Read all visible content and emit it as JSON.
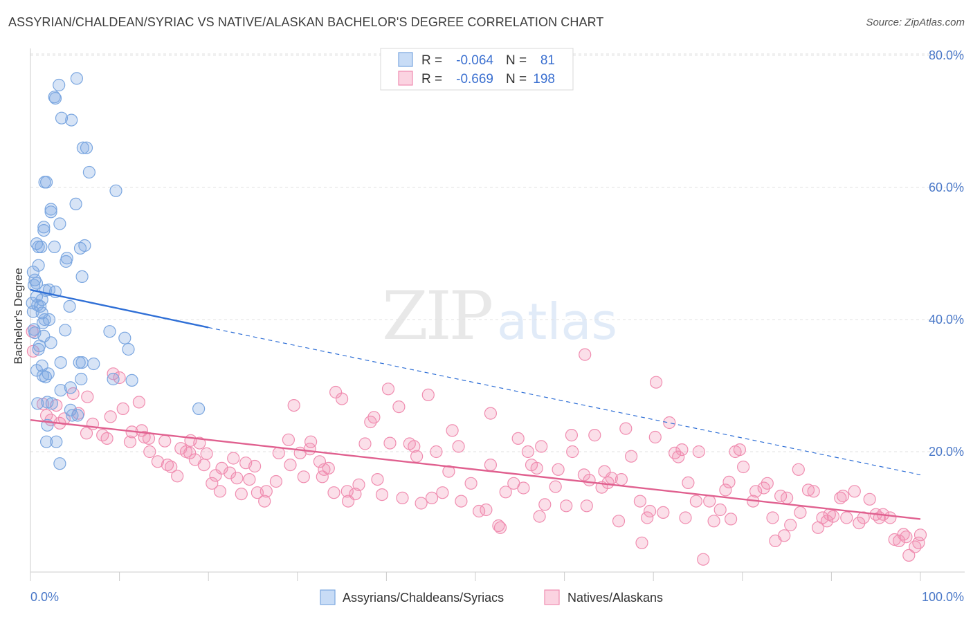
{
  "title": "ASSYRIAN/CHALDEAN/SYRIAC VS NATIVE/ALASKAN BACHELOR'S DEGREE CORRELATION CHART",
  "source": "Source: ZipAtlas.com",
  "watermark": {
    "zip": "ZIP",
    "atlas": "atlas"
  },
  "colors": {
    "blue": "#7aa6e0",
    "blue_line": "#2f6fd6",
    "pink": "#f08db0",
    "pink_line": "#e0608f",
    "tick_text": "#4a78c8"
  },
  "legend": {
    "r_label": "R =",
    "n_label": "N =",
    "series": [
      {
        "r": "-0.064",
        "n": "81"
      },
      {
        "r": "-0.669",
        "n": "198"
      }
    ]
  },
  "chart_data": {
    "type": "scatter",
    "title": "ASSYRIAN/CHALDEAN/SYRIAC VS NATIVE/ALASKAN BACHELOR'S DEGREE CORRELATION CHART",
    "xlabel": "",
    "ylabel": "Bachelor's Degree",
    "xlim": [
      0,
      100
    ],
    "ylim": [
      0,
      82
    ],
    "x_tick_labels": [
      "0.0%",
      "100.0%"
    ],
    "y_ticks": [
      20,
      40,
      60,
      80
    ],
    "y_tick_labels": [
      "20.0%",
      "40.0%",
      "60.0%",
      "80.0%"
    ],
    "legend_position": "top-center",
    "series": [
      {
        "name": "Assyrians/Chaldeans/Syriacs",
        "color": "blue",
        "trend": {
          "x1": 0,
          "y1": 44.5,
          "x2": 20,
          "y2": 38.8,
          "dashed_to_x": 100,
          "dashed_to_y": 16.5
        },
        "points": [
          [
            5.2,
            76.5
          ],
          [
            3.2,
            75.5
          ],
          [
            2.8,
            73.5
          ],
          [
            2.7,
            73.7
          ],
          [
            3.5,
            70.5
          ],
          [
            4.6,
            70.2
          ],
          [
            6.3,
            66
          ],
          [
            5.9,
            66
          ],
          [
            6.6,
            62.3
          ],
          [
            1.6,
            60.8
          ],
          [
            1.8,
            60.8
          ],
          [
            9.6,
            59.5
          ],
          [
            5.1,
            57.5
          ],
          [
            2.3,
            56.3
          ],
          [
            2.3,
            56.7
          ],
          [
            3.3,
            54.5
          ],
          [
            1.5,
            53.5
          ],
          [
            1.5,
            54
          ],
          [
            0.7,
            51.5
          ],
          [
            0.9,
            51
          ],
          [
            2.7,
            51
          ],
          [
            6.1,
            51.2
          ],
          [
            5.6,
            50.8
          ],
          [
            1.2,
            51
          ],
          [
            4.0,
            48.8
          ],
          [
            4.1,
            49.3
          ],
          [
            0.9,
            48.2
          ],
          [
            0.3,
            47.2
          ],
          [
            0.5,
            46.0
          ],
          [
            5.8,
            46.5
          ],
          [
            0.7,
            45.5
          ],
          [
            0.4,
            45.2
          ],
          [
            2.1,
            44.5
          ],
          [
            1.7,
            44.4
          ],
          [
            2.8,
            44.2
          ],
          [
            0.7,
            43.5
          ],
          [
            0.2,
            42.5
          ],
          [
            1.3,
            43.0
          ],
          [
            0.8,
            42.2
          ],
          [
            1.1,
            42.0
          ],
          [
            1.3,
            41.0
          ],
          [
            0.3,
            41.2
          ],
          [
            4.4,
            42.0
          ],
          [
            1.6,
            40.0
          ],
          [
            2.1,
            40.0
          ],
          [
            1.4,
            39.5
          ],
          [
            0.4,
            38.5
          ],
          [
            3.9,
            38.4
          ],
          [
            0.5,
            38.0
          ],
          [
            8.9,
            38.2
          ],
          [
            1.5,
            37.5
          ],
          [
            10.6,
            37.2
          ],
          [
            2.3,
            36.5
          ],
          [
            1.0,
            36.0
          ],
          [
            11.0,
            35.5
          ],
          [
            0.9,
            35.5
          ],
          [
            3.4,
            33.5
          ],
          [
            5.5,
            33.5
          ],
          [
            7.1,
            33.3
          ],
          [
            5.8,
            33.5
          ],
          [
            1.3,
            33.0
          ],
          [
            0.7,
            32.3
          ],
          [
            2.0,
            31.8
          ],
          [
            1.4,
            31.5
          ],
          [
            1.7,
            31.3
          ],
          [
            9.3,
            31.0
          ],
          [
            11.4,
            30.8
          ],
          [
            5.7,
            31.0
          ],
          [
            4.5,
            29.7
          ],
          [
            3.4,
            29.3
          ],
          [
            0.8,
            27.3
          ],
          [
            2.4,
            27.3
          ],
          [
            1.9,
            27.5
          ],
          [
            18.9,
            26.5
          ],
          [
            4.5,
            26.3
          ],
          [
            5.3,
            25.5
          ],
          [
            4.7,
            25.5
          ],
          [
            1.9,
            24.0
          ],
          [
            1.8,
            21.5
          ],
          [
            2.9,
            21.5
          ],
          [
            3.3,
            18.2
          ]
        ]
      },
      {
        "name": "Natives/Alaskans",
        "color": "pink",
        "trend": {
          "x1": 0,
          "y1": 24.8,
          "x2": 100,
          "y2": 9.8
        },
        "points": [
          [
            0.2,
            38.2
          ],
          [
            0.3,
            35.2
          ],
          [
            1.4,
            27.2
          ],
          [
            4.8,
            28.8
          ],
          [
            6.4,
            28.3
          ],
          [
            2.9,
            27.0
          ],
          [
            9.3,
            31.8
          ],
          [
            10.0,
            31.2
          ],
          [
            12.2,
            27.5
          ],
          [
            1.8,
            25.5
          ],
          [
            2.3,
            24.8
          ],
          [
            3.3,
            24.3
          ],
          [
            3.8,
            25.0
          ],
          [
            5.4,
            25.8
          ],
          [
            6.3,
            22.8
          ],
          [
            7.0,
            24.2
          ],
          [
            8.6,
            22.0
          ],
          [
            8.1,
            22.5
          ],
          [
            9.0,
            25.3
          ],
          [
            10.4,
            26.5
          ],
          [
            11.2,
            21.5
          ],
          [
            11.4,
            23.0
          ],
          [
            12.5,
            23.2
          ],
          [
            12.8,
            22.2
          ],
          [
            13.3,
            22.0
          ],
          [
            13.4,
            20.0
          ],
          [
            14.3,
            18.5
          ],
          [
            15.1,
            21.6
          ],
          [
            15.4,
            18.0
          ],
          [
            15.8,
            17.7
          ],
          [
            16.5,
            16.3
          ],
          [
            16.9,
            20.5
          ],
          [
            17.5,
            20.0
          ],
          [
            17.9,
            19.8
          ],
          [
            18.0,
            21.7
          ],
          [
            18.5,
            18.8
          ],
          [
            19.0,
            21.3
          ],
          [
            19.5,
            18.0
          ],
          [
            19.8,
            19.7
          ],
          [
            20.4,
            15.2
          ],
          [
            20.8,
            16.4
          ],
          [
            21.3,
            14.0
          ],
          [
            21.5,
            17.5
          ],
          [
            22.4,
            16.8
          ],
          [
            22.8,
            19.0
          ],
          [
            23.2,
            16.0
          ],
          [
            23.7,
            13.6
          ],
          [
            24.2,
            18.3
          ],
          [
            24.6,
            15.8
          ],
          [
            25.2,
            17.8
          ],
          [
            25.5,
            13.8
          ],
          [
            26.3,
            12.5
          ],
          [
            26.5,
            14.0
          ],
          [
            27.6,
            15.5
          ],
          [
            27.9,
            19.8
          ],
          [
            29.0,
            21.8
          ],
          [
            29.2,
            18.0
          ],
          [
            29.6,
            27.0
          ],
          [
            30.3,
            19.8
          ],
          [
            30.7,
            16.2
          ],
          [
            31.4,
            20.4
          ],
          [
            31.5,
            21.5
          ],
          [
            32.5,
            18.5
          ],
          [
            32.8,
            16.2
          ],
          [
            33.0,
            17.3
          ],
          [
            33.5,
            17.5
          ],
          [
            34.1,
            13.8
          ],
          [
            34.3,
            29.0
          ],
          [
            35.0,
            28.0
          ],
          [
            35.6,
            14.0
          ],
          [
            35.7,
            12.5
          ],
          [
            36.5,
            13.6
          ],
          [
            36.9,
            15.0
          ],
          [
            37.6,
            21.2
          ],
          [
            38.2,
            24.5
          ],
          [
            38.6,
            25.2
          ],
          [
            39.0,
            15.8
          ],
          [
            39.5,
            13.5
          ],
          [
            40.2,
            29.5
          ],
          [
            40.4,
            21.3
          ],
          [
            41.4,
            26.8
          ],
          [
            41.8,
            13.0
          ],
          [
            42.6,
            21.2
          ],
          [
            43.1,
            20.8
          ],
          [
            43.9,
            12.2
          ],
          [
            43.4,
            19.3
          ],
          [
            44.7,
            28.6
          ],
          [
            45.1,
            13.0
          ],
          [
            45.6,
            20.0
          ],
          [
            46.3,
            13.8
          ],
          [
            47.0,
            17.0
          ],
          [
            47.4,
            23.2
          ],
          [
            48.1,
            20.8
          ],
          [
            48.4,
            12.5
          ],
          [
            49.5,
            15.2
          ],
          [
            50.4,
            11.0
          ],
          [
            51.2,
            11.2
          ],
          [
            51.7,
            25.8
          ],
          [
            51.7,
            18.0
          ],
          [
            52.6,
            8.8
          ],
          [
            52.8,
            8.5
          ],
          [
            53.4,
            13.9
          ],
          [
            54.3,
            15.2
          ],
          [
            54.8,
            22.0
          ],
          [
            55.4,
            14.5
          ],
          [
            55.9,
            20.0
          ],
          [
            56.3,
            18.0
          ],
          [
            56.9,
            17.5
          ],
          [
            57.4,
            20.8
          ],
          [
            57.8,
            12.0
          ],
          [
            57.2,
            10.2
          ],
          [
            59.0,
            14.7
          ],
          [
            59.3,
            17.3
          ],
          [
            60.2,
            11.8
          ],
          [
            60.8,
            22.5
          ],
          [
            60.9,
            20.0
          ],
          [
            62.2,
            16.5
          ],
          [
            62.3,
            34.7
          ],
          [
            62.5,
            11.8
          ],
          [
            62.8,
            15.7
          ],
          [
            63.4,
            22.5
          ],
          [
            64.2,
            14.6
          ],
          [
            64.5,
            17.0
          ],
          [
            64.9,
            15.3
          ],
          [
            65.3,
            16.0
          ],
          [
            66.1,
            9.5
          ],
          [
            66.4,
            15.8
          ],
          [
            66.9,
            23.5
          ],
          [
            67.5,
            19.3
          ],
          [
            68.5,
            12.5
          ],
          [
            68.7,
            6.2
          ],
          [
            69.3,
            10.0
          ],
          [
            69.6,
            11.0
          ],
          [
            70.2,
            22.2
          ],
          [
            70.3,
            30.5
          ],
          [
            71.1,
            10.8
          ],
          [
            71.8,
            24.4
          ],
          [
            72.4,
            19.8
          ],
          [
            72.8,
            19.2
          ],
          [
            73.2,
            20.3
          ],
          [
            73.6,
            10.0
          ],
          [
            73.9,
            15.3
          ],
          [
            74.8,
            12.5
          ],
          [
            75.1,
            20.0
          ],
          [
            75.6,
            3.7
          ],
          [
            76.3,
            12.5
          ],
          [
            76.8,
            9.5
          ],
          [
            77.5,
            11.2
          ],
          [
            78.1,
            14.2
          ],
          [
            78.5,
            15.4
          ],
          [
            78.7,
            9.8
          ],
          [
            79.2,
            20.0
          ],
          [
            79.7,
            20.3
          ],
          [
            80.1,
            17.7
          ],
          [
            81.2,
            12.5
          ],
          [
            81.5,
            14.0
          ],
          [
            82.4,
            14.5
          ],
          [
            82.8,
            15.2
          ],
          [
            83.4,
            10.0
          ],
          [
            83.7,
            6.5
          ],
          [
            84.3,
            13.3
          ],
          [
            84.7,
            7.3
          ],
          [
            85.0,
            13.0
          ],
          [
            85.4,
            8.9
          ],
          [
            86.3,
            17.3
          ],
          [
            86.5,
            10.8
          ],
          [
            87.4,
            14.2
          ],
          [
            88.0,
            14.0
          ],
          [
            88.5,
            8.5
          ],
          [
            89.0,
            10.0
          ],
          [
            89.5,
            9.5
          ],
          [
            89.8,
            10.5
          ],
          [
            90.2,
            10.2
          ],
          [
            91.0,
            13.0
          ],
          [
            91.3,
            13.3
          ],
          [
            91.7,
            10.0
          ],
          [
            92.6,
            14.0
          ],
          [
            93.1,
            9.2
          ],
          [
            93.6,
            10.0
          ],
          [
            94.3,
            12.8
          ],
          [
            95.0,
            10.5
          ],
          [
            95.4,
            10.0
          ],
          [
            95.8,
            10.5
          ],
          [
            96.6,
            10.0
          ],
          [
            97.1,
            6.7
          ],
          [
            97.6,
            6.5
          ],
          [
            98.1,
            7.5
          ],
          [
            98.4,
            7.1
          ],
          [
            98.7,
            4.3
          ],
          [
            99.4,
            5.6
          ],
          [
            99.8,
            6.2
          ],
          [
            100.0,
            7.4
          ]
        ]
      }
    ]
  }
}
